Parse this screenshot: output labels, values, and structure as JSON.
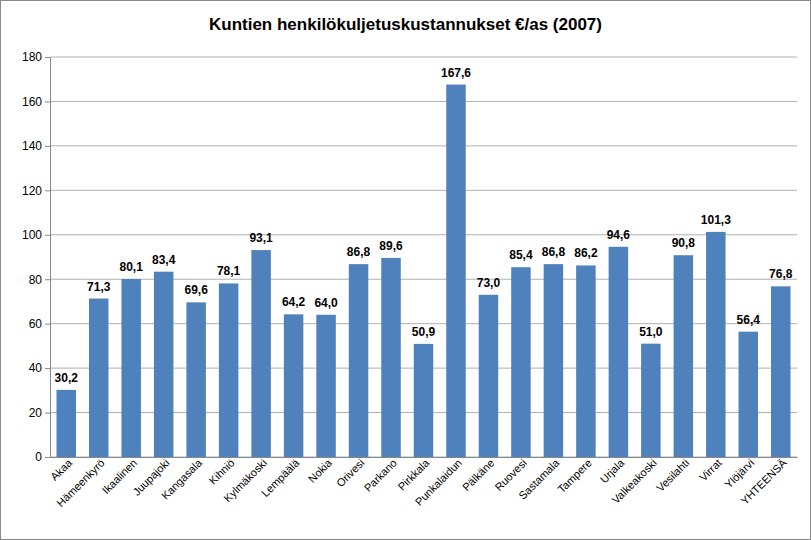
{
  "chart_data": {
    "type": "bar",
    "title": "Kuntien henkilökuljetuskustannukset €/as (2007)",
    "categories": [
      "Akaa",
      "Hämeenkyrö",
      "Ikaalinen",
      "Juupajoki",
      "Kangasala",
      "Kihniö",
      "Kylmäkoski",
      "Lempäälä",
      "Nokia",
      "Orivesi",
      "Parkano",
      "Pirkkala",
      "Punkalaidun",
      "Pälkäne",
      "Ruovesi",
      "Sastamala",
      "Tampere",
      "Urjala",
      "Valkeakoski",
      "Vesilahti",
      "Virrat",
      "Ylöjärvi",
      "YHTEENSÄ"
    ],
    "values": [
      30.2,
      71.3,
      80.1,
      83.4,
      69.6,
      78.1,
      93.1,
      64.2,
      64.0,
      86.8,
      89.6,
      50.9,
      167.6,
      73.0,
      85.4,
      86.8,
      86.2,
      94.6,
      51.0,
      90.8,
      101.3,
      56.4,
      76.8
    ],
    "value_labels": [
      "30,2",
      "71,3",
      "80,1",
      "83,4",
      "69,6",
      "78,1",
      "93,1",
      "64,2",
      "64,0",
      "86,8",
      "89,6",
      "50,9",
      "167,6",
      "73,0",
      "85,4",
      "86,8",
      "86,2",
      "94,6",
      "51,0",
      "90,8",
      "101,3",
      "56,4",
      "76,8"
    ],
    "color": "#4f81bd",
    "ylim": [
      0,
      180
    ],
    "yticks": [
      0,
      20,
      40,
      60,
      80,
      100,
      120,
      140,
      160,
      180
    ],
    "grid": true,
    "data_labels": true
  }
}
